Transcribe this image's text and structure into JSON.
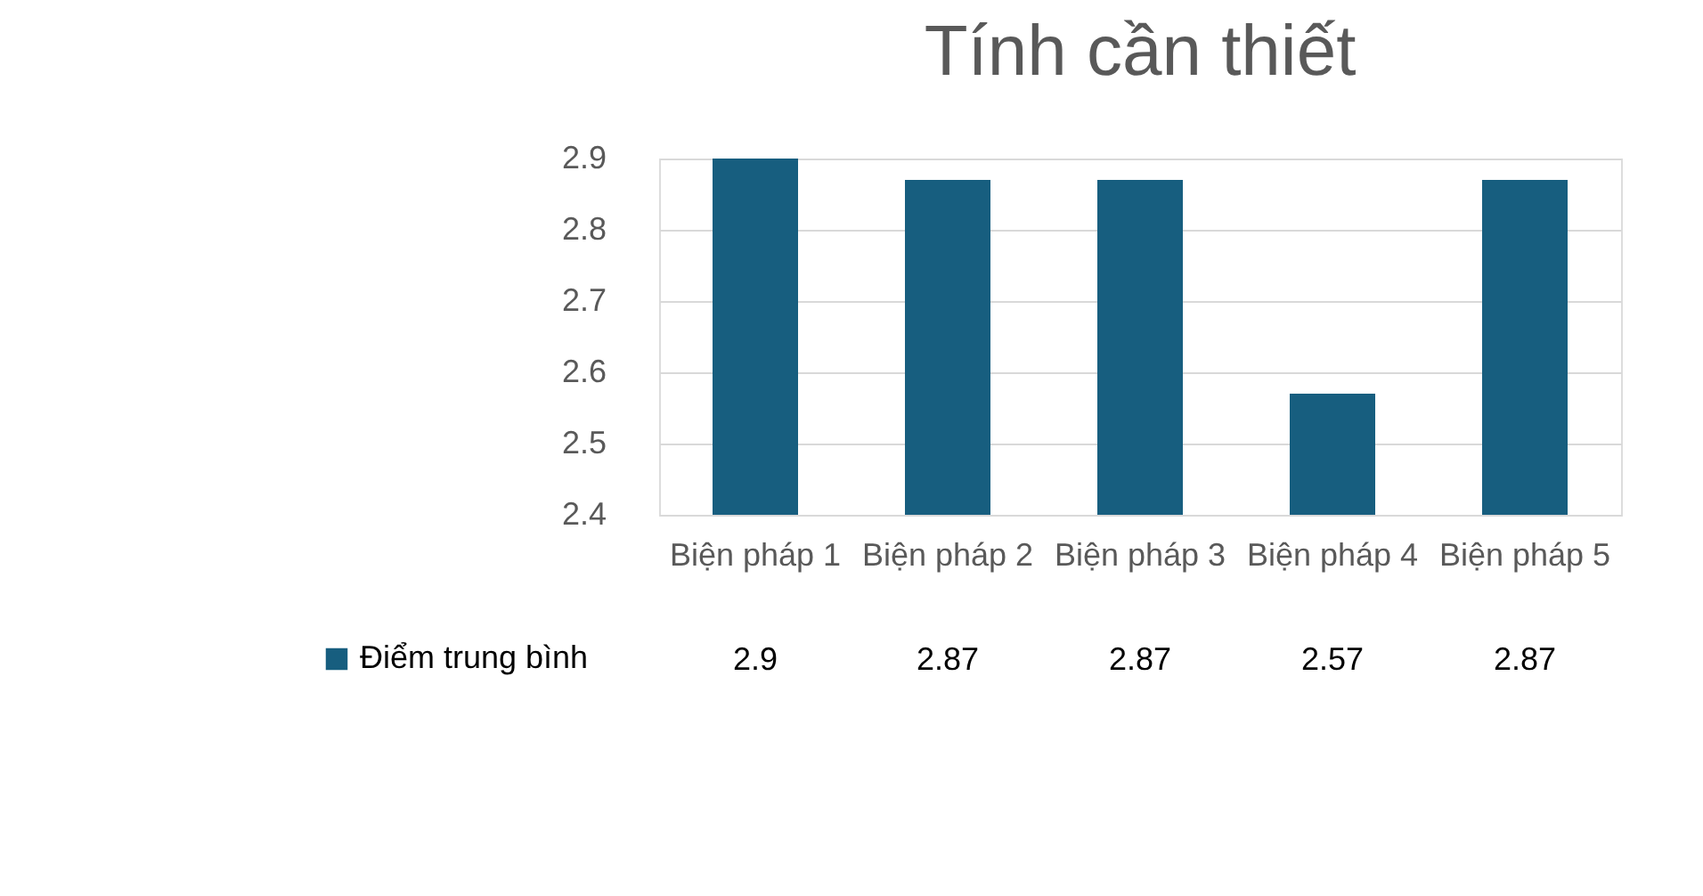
{
  "chart_data": {
    "type": "bar",
    "title": "Tính cần thiết",
    "categories": [
      "Biện pháp 1",
      "Biện pháp 2",
      "Biện pháp 3",
      "Biện pháp 4",
      "Biện pháp 5"
    ],
    "series": [
      {
        "name": "Điểm trung bình",
        "color": "#175e7f",
        "values": [
          2.9,
          2.87,
          2.87,
          2.57,
          2.87
        ]
      }
    ],
    "ylim": [
      2.4,
      2.9
    ],
    "yticks": [
      2.4,
      2.5,
      2.6,
      2.7,
      2.8,
      2.9
    ],
    "grid": "y",
    "data_labels": true,
    "legend": "bottom left"
  }
}
